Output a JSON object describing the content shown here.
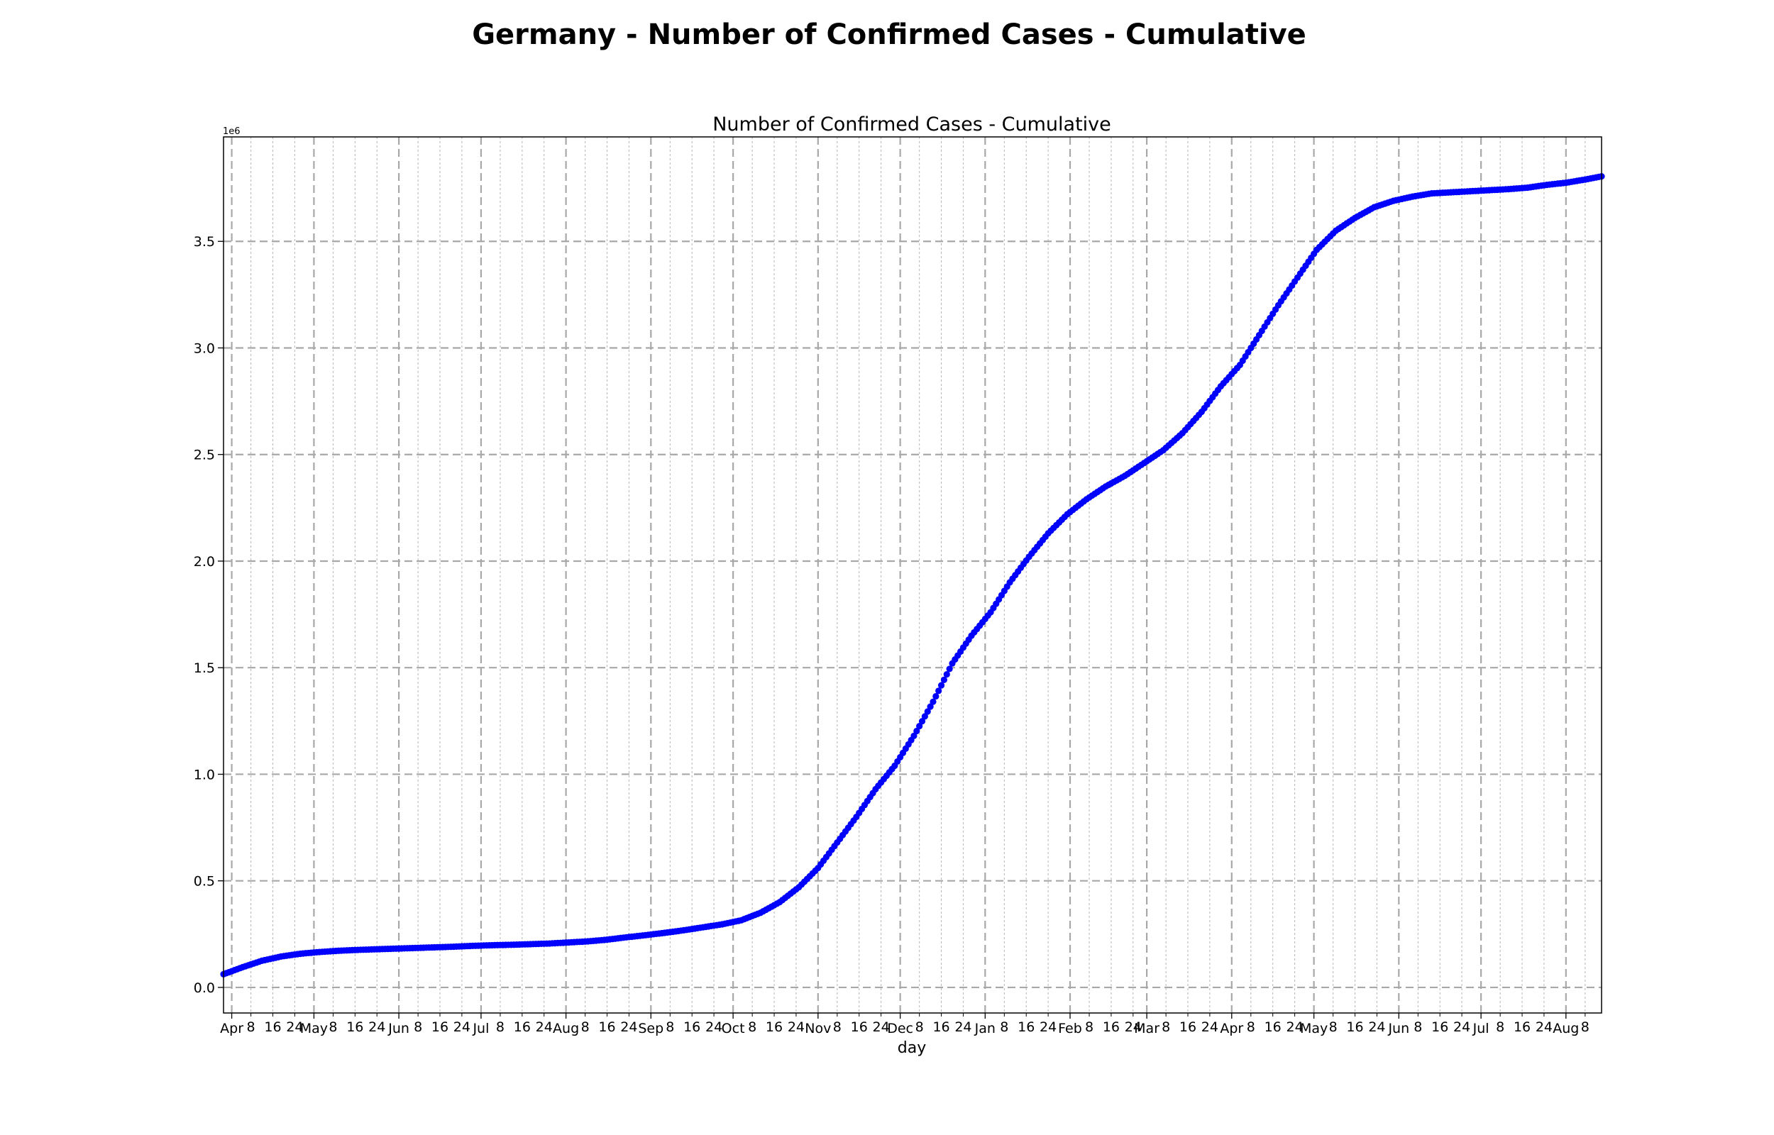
{
  "figure_title": "Germany - Number of Confirmed Cases - Cumulative",
  "chart_data": {
    "type": "scatter",
    "title": "Number of Confirmed Cases - Cumulative",
    "xlabel": "day",
    "ylabel": "",
    "y_offset_label": "1e6",
    "x_range": [
      "2020-03-29",
      "2021-08-14"
    ],
    "ylim": [
      -120000,
      3990000
    ],
    "y_ticks": [
      0.0,
      0.5,
      1.0,
      1.5,
      2.0,
      2.5,
      3.0,
      3.5
    ],
    "y_tick_labels": [
      "0.0",
      "0.5",
      "1.0",
      "1.5",
      "2.0",
      "2.5",
      "3.0",
      "3.5"
    ],
    "x_major_ticks": [
      {
        "date": "2020-04-01",
        "label": "Apr"
      },
      {
        "date": "2020-05-01",
        "label": "May"
      },
      {
        "date": "2020-06-01",
        "label": "Jun"
      },
      {
        "date": "2020-07-01",
        "label": "Jul"
      },
      {
        "date": "2020-08-01",
        "label": "Aug"
      },
      {
        "date": "2020-09-01",
        "label": "Sep"
      },
      {
        "date": "2020-10-01",
        "label": "Oct"
      },
      {
        "date": "2020-11-01",
        "label": "Nov"
      },
      {
        "date": "2020-12-01",
        "label": "Dec"
      },
      {
        "date": "2021-01-01",
        "label": "Jan"
      },
      {
        "date": "2021-02-01",
        "label": "Feb"
      },
      {
        "date": "2021-03-01",
        "label": "Mar"
      },
      {
        "date": "2021-04-01",
        "label": "Apr"
      },
      {
        "date": "2021-05-01",
        "label": "May"
      },
      {
        "date": "2021-06-01",
        "label": "Jun"
      },
      {
        "date": "2021-07-01",
        "label": "Jul"
      },
      {
        "date": "2021-08-01",
        "label": "Aug"
      }
    ],
    "x_minor_tick_days": [
      8,
      16,
      24
    ],
    "grid": true,
    "marker_color": "#0000ff",
    "series": [
      {
        "x": [
          "2020-03-29",
          "2020-04-05",
          "2020-04-12",
          "2020-04-19",
          "2020-04-26",
          "2020-05-03",
          "2020-05-10",
          "2020-05-17",
          "2020-05-24",
          "2020-05-31",
          "2020-06-07",
          "2020-06-14",
          "2020-06-21",
          "2020-06-28",
          "2020-07-05",
          "2020-07-12",
          "2020-07-19",
          "2020-07-26",
          "2020-08-02",
          "2020-08-09",
          "2020-08-16",
          "2020-08-23",
          "2020-08-30",
          "2020-09-06",
          "2020-09-13",
          "2020-09-20",
          "2020-09-27",
          "2020-10-04",
          "2020-10-11",
          "2020-10-18",
          "2020-10-25",
          "2020-11-01",
          "2020-11-08",
          "2020-11-15",
          "2020-11-22",
          "2020-11-29",
          "2020-12-06",
          "2020-12-13",
          "2020-12-20",
          "2020-12-27",
          "2021-01-03",
          "2021-01-10",
          "2021-01-17",
          "2021-01-24",
          "2021-01-31",
          "2021-02-07",
          "2021-02-14",
          "2021-02-21",
          "2021-02-28",
          "2021-03-07",
          "2021-03-14",
          "2021-03-21",
          "2021-03-28",
          "2021-04-04",
          "2021-04-11",
          "2021-04-18",
          "2021-04-25",
          "2021-05-02",
          "2021-05-09",
          "2021-05-16",
          "2021-05-23",
          "2021-05-30",
          "2021-06-06",
          "2021-06-13",
          "2021-06-20",
          "2021-06-27",
          "2021-07-04",
          "2021-07-11",
          "2021-07-18",
          "2021-07-25",
          "2021-08-01",
          "2021-08-08",
          "2021-08-14"
        ],
        "y": [
          62000,
          95000,
          125000,
          145000,
          158000,
          166000,
          172000,
          176000,
          179000,
          182000,
          185000,
          188000,
          191000,
          195000,
          198000,
          200000,
          203000,
          206000,
          211000,
          216000,
          224000,
          235000,
          245000,
          256000,
          268000,
          282000,
          296000,
          315000,
          350000,
          400000,
          470000,
          560000,
          680000,
          800000,
          930000,
          1040000,
          1180000,
          1340000,
          1520000,
          1650000,
          1760000,
          1900000,
          2020000,
          2130000,
          2220000,
          2290000,
          2350000,
          2400000,
          2460000,
          2520000,
          2600000,
          2700000,
          2820000,
          2920000,
          3060000,
          3200000,
          3330000,
          3460000,
          3550000,
          3610000,
          3660000,
          3690000,
          3710000,
          3725000,
          3730000,
          3735000,
          3740000,
          3745000,
          3752000,
          3765000,
          3775000,
          3790000,
          3805000
        ]
      }
    ]
  }
}
